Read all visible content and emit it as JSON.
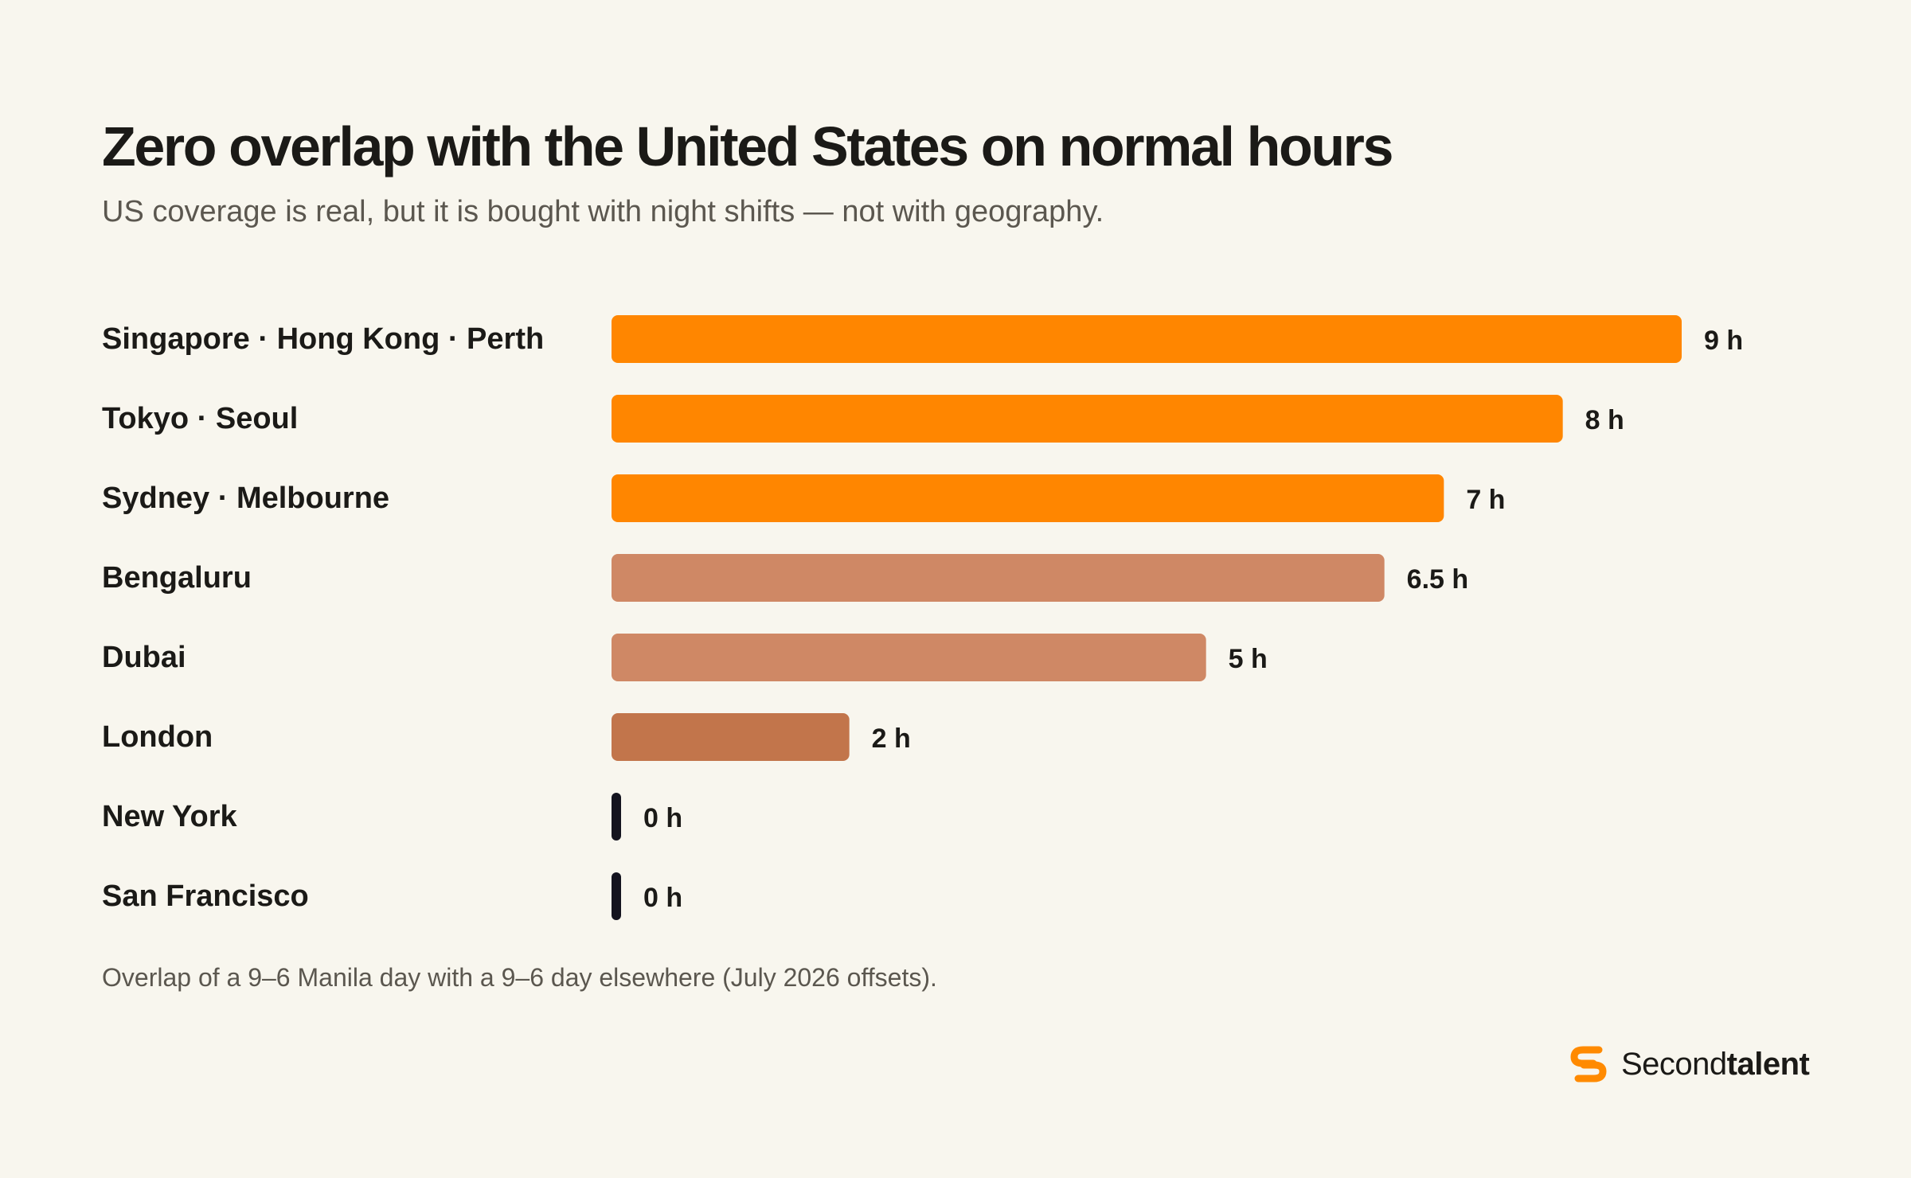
{
  "header": {
    "title": "Zero overlap with the United States on normal hours",
    "subtitle": "US coverage is real, but it is bought with night shifts — not with geography."
  },
  "footnote": "Overlap of a 9–6 Manila day with a 9–6 day elsewhere (July 2026 offsets).",
  "brand": {
    "name_light": "Second",
    "name_bold": "talent",
    "icon": "secondtalent-logo-icon",
    "color": "#ff8a00"
  },
  "chart_data": {
    "type": "bar",
    "orientation": "horizontal",
    "categories": [
      "Singapore · Hong Kong · Perth",
      "Tokyo · Seoul",
      "Sydney · Melbourne",
      "Bengaluru",
      "Dubai",
      "London",
      "New York",
      "San Francisco"
    ],
    "values": [
      9,
      8,
      7,
      6.5,
      5,
      2,
      0,
      0
    ],
    "value_labels": [
      "9 h",
      "8 h",
      "7 h",
      "6.5 h",
      "5 h",
      "2 h",
      "0 h",
      "0 h"
    ],
    "unit": "h",
    "xlim": [
      0,
      9
    ],
    "grid": false,
    "legend": "none",
    "colors": {
      "high": "#ff8600",
      "mid": "#cf8865",
      "low": "#c2754b",
      "zero": "#14141f"
    },
    "bar_colors": [
      "high",
      "high",
      "high",
      "mid",
      "mid",
      "low",
      "zero",
      "zero"
    ]
  }
}
